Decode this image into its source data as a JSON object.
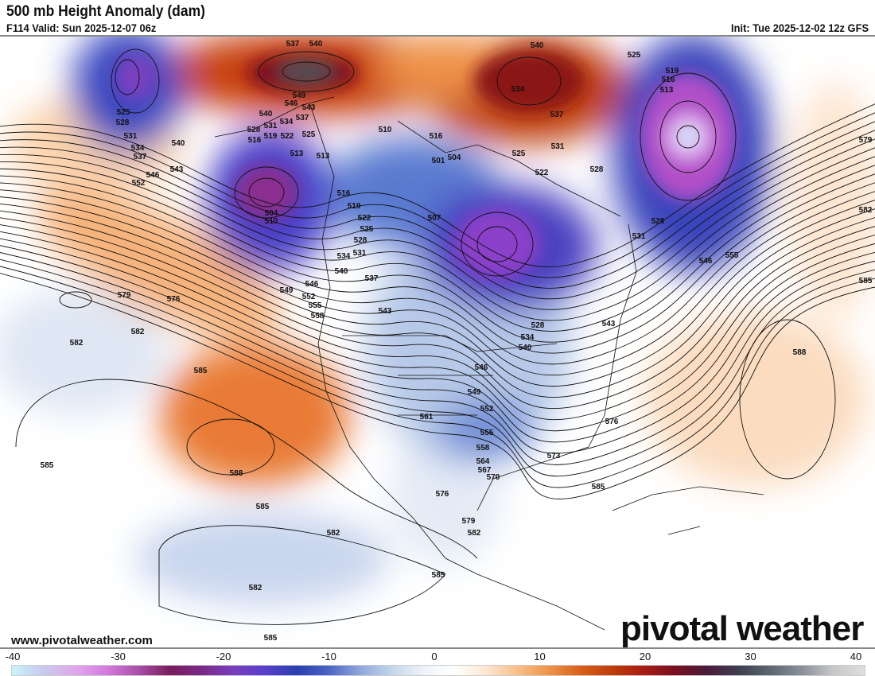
{
  "header": {
    "title": "500 mb Height Anomaly (dam)",
    "valid": "F114 Valid: Sun 2025-12-07 06z",
    "init": "Init: Tue 2025-12-02 12z GFS"
  },
  "footer": {
    "url": "www.pivotalweather.com",
    "logo_text": "pivotal weather"
  },
  "colorbar": {
    "ticks": [
      "-40",
      "-30",
      "-20",
      "-10",
      "0",
      "10",
      "20",
      "30",
      "40"
    ],
    "range": [
      -40,
      40
    ],
    "colors": [
      "#c8f4fa",
      "#c9c9ee",
      "#e0a8ec",
      "#d57ae0",
      "#a94fa9",
      "#7a1d5e",
      "#7a2a86",
      "#7a3fbf",
      "#5a3fcc",
      "#2a3fb0",
      "#4a63c4",
      "#8da6db",
      "#c3d4ea",
      "#eef2f8",
      "#ffffff",
      "#fde7d2",
      "#f8c08a",
      "#ef934a",
      "#d7601a",
      "#bf3d0b",
      "#a81c14",
      "#7a1020",
      "#4a1a3a",
      "#3f3f4f",
      "#5c6670",
      "#8a9098",
      "#c6c6c6",
      "#e0dede"
    ]
  },
  "contour_labels": [
    "537",
    "540",
    "540",
    "549",
    "546",
    "543",
    "540",
    "537",
    "534",
    "531",
    "528",
    "525",
    "522",
    "519",
    "516",
    "513",
    "513",
    "510",
    "516",
    "501",
    "504",
    "525",
    "522",
    "528",
    "534",
    "537",
    "531",
    "525",
    "519",
    "516",
    "513",
    "579",
    "582",
    "585",
    "528",
    "531",
    "546",
    "555",
    "525",
    "528",
    "531",
    "534",
    "537",
    "540",
    "543",
    "546",
    "552",
    "504",
    "510",
    "516",
    "519",
    "522",
    "525",
    "528",
    "531",
    "534",
    "540",
    "537",
    "543",
    "507",
    "549",
    "552",
    "546",
    "555",
    "558",
    "579",
    "576",
    "582",
    "582",
    "585",
    "588",
    "585",
    "585",
    "582",
    "582",
    "585",
    "585",
    "576",
    "579",
    "582",
    "561",
    "546",
    "549",
    "552",
    "555",
    "558",
    "564",
    "567",
    "570",
    "573",
    "576",
    "585",
    "588",
    "534",
    "540",
    "528",
    "543"
  ]
}
